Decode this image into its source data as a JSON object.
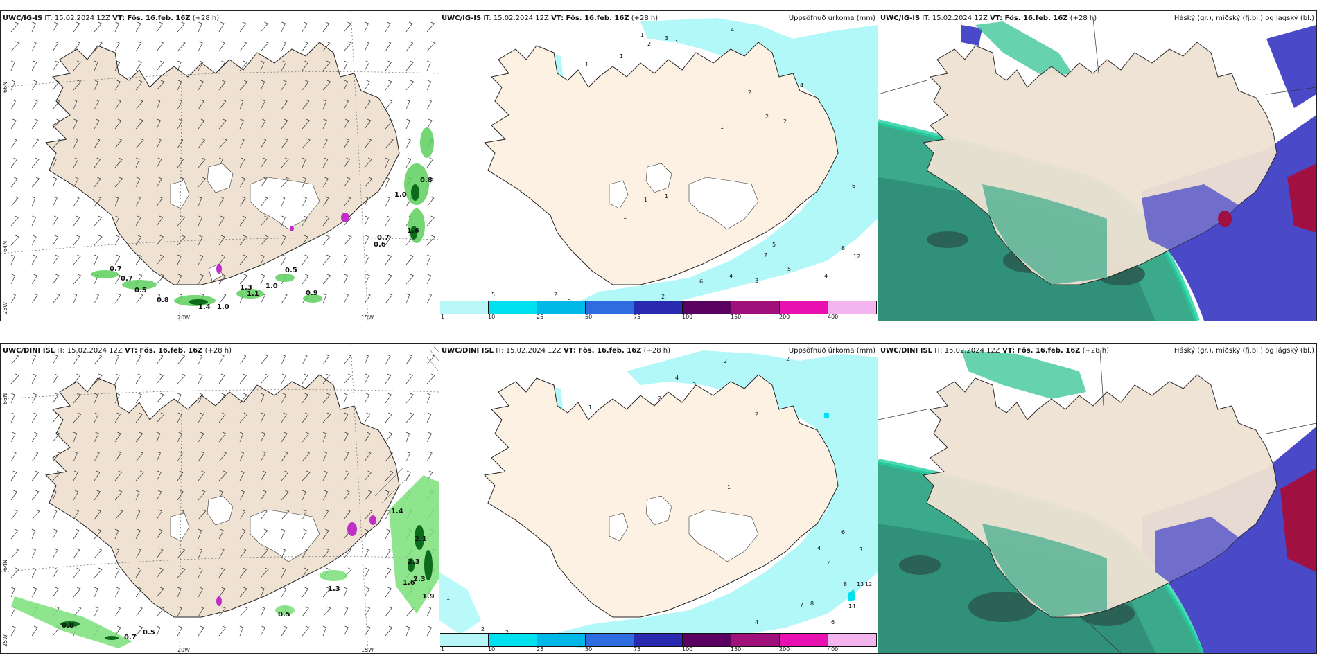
{
  "panels": [
    {
      "model": "UWC/IG-IS",
      "it": "IT: 15.02.2024 12Z",
      "vt": "VT: Fös. 16.feb. 16Z",
      "lead": "(+28 h)",
      "title_right": ""
    },
    {
      "model": "UWC/IG-IS",
      "it": "IT: 15.02.2024 12Z",
      "vt": "VT: Fös. 16.feb. 16Z",
      "lead": "(+28 h)",
      "title_right": "Uppsöfnuð úrkoma (mm)"
    },
    {
      "model": "UWC/IG-IS",
      "it": "IT: 15.02.2024 12Z",
      "vt": "VT: Fös. 16.feb. 16Z",
      "lead": "(+28 h)",
      "title_right": "Háský (gr.), miðský (fj.bl.) og lágský (bl.)"
    },
    {
      "model": "UWC/DINI ISL",
      "it": "IT: 15.02.2024 12Z",
      "vt": "VT: Fös. 16.feb. 16Z",
      "lead": "(+28 h)",
      "title_right": ""
    },
    {
      "model": "UWC/DINI ISL",
      "it": "IT: 15.02.2024 12Z",
      "vt": "VT: Fös. 16.feb. 16Z",
      "lead": "(+28 h)",
      "title_right": "Uppsöfnuð úrkoma (mm)"
    },
    {
      "model": "UWC/DINI ISL",
      "it": "IT: 15.02.2024 12Z",
      "vt": "VT: Fös. 16.feb. 16Z",
      "lead": "(+28 h)",
      "title_right": "Háský (gr.), miðský (fj.bl.) og lágský (bl.)"
    }
  ],
  "grid_labels": {
    "lon": [
      "20W",
      "15W"
    ],
    "lat": [
      "66N",
      "64N",
      "25W"
    ]
  },
  "colorbar": {
    "levels": [
      "1",
      "10",
      "25",
      "50",
      "75",
      "100",
      "150",
      "200",
      "400"
    ],
    "colors": [
      "#b7f7f7",
      "#00e0ee",
      "#00b8e8",
      "#2f6ce0",
      "#2a2ab0",
      "#5a0060",
      "#a0107a",
      "#e810b0",
      "#f4b4f0"
    ]
  },
  "colors": {
    "land": "#efe2d3",
    "land_precip": "#fdf1e4",
    "ice": "#ffffff",
    "precip_light": "#b2f8f8",
    "cloud_high": "#3aaa8a",
    "cloud_mid": "#4a4ac8",
    "cloud_low": "#a01040",
    "wind_green": "#22aa33"
  },
  "wind_values_top": [
    "0.8",
    "1.0",
    "0.7",
    "0.6",
    "1.6",
    "0.5",
    "0.7",
    "0.7",
    "0.5",
    "1.3",
    "1.1",
    "1.0",
    "0.9",
    "0.8",
    "1.4",
    "1.0"
  ],
  "wind_values_bottom": [
    "1.4",
    "2.1",
    "2.3",
    "1.6",
    "2.3",
    "1.9",
    "1.3",
    "0.5",
    "0.8",
    "0.7",
    "0.5"
  ],
  "precip_values_top": [
    "1",
    "2",
    "3",
    "4",
    "1",
    "1",
    "1",
    "1",
    "2",
    "2",
    "2",
    "4",
    "6",
    "5",
    "8",
    "12",
    "7",
    "5",
    "4",
    "3",
    "4",
    "6",
    "2",
    "2",
    "5",
    "1",
    "1",
    "1",
    "2"
  ],
  "precip_values_bottom": [
    "2",
    "2",
    "4",
    "3",
    "1",
    "2",
    "2",
    "1",
    "6",
    "13",
    "12",
    "8",
    "14",
    "3",
    "4",
    "4",
    "8",
    "7",
    "4",
    "6",
    "2",
    "2",
    "1"
  ]
}
